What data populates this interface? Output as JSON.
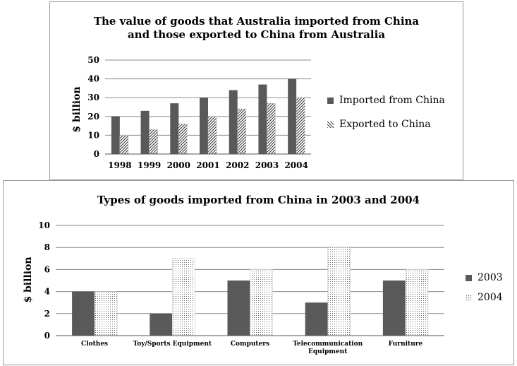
{
  "chart_data": [
    {
      "type": "bar",
      "title_line1": "The value of goods that Australia imported from China",
      "title_line2": "and those exported to China from Australia",
      "ylabel": "$ billion",
      "xlabel": "",
      "ylim": [
        0,
        50
      ],
      "yticks": [
        0,
        10,
        20,
        30,
        40,
        50
      ],
      "categories": [
        "1998",
        "1999",
        "2000",
        "2001",
        "2002",
        "2003",
        "2004"
      ],
      "series": [
        {
          "name": "Imported from China",
          "values": [
            20,
            23,
            27,
            30,
            34,
            37,
            40
          ],
          "color": "#595959",
          "pattern": "solid"
        },
        {
          "name": "Exported to China",
          "values": [
            10,
            13,
            16,
            20,
            24,
            27,
            30
          ],
          "color": "#444444",
          "pattern": "hatch"
        }
      ],
      "grid": true,
      "legend": "right"
    },
    {
      "type": "bar",
      "title": "Types of goods imported from China in 2003 and 2004",
      "ylabel": "$ billion",
      "xlabel": "",
      "ylim": [
        0,
        10
      ],
      "yticks": [
        0,
        2,
        4,
        6,
        8,
        10
      ],
      "categories": [
        "Clothes",
        "Toy/Sports Equipment",
        "Computers",
        "Telecommunication Equipment",
        "Furniture"
      ],
      "category_lines": [
        [
          "Clothes"
        ],
        [
          "Toy/Sports Equipment"
        ],
        [
          "Computers"
        ],
        [
          "Telecommunication",
          "Equipment"
        ],
        [
          "Furniture"
        ]
      ],
      "series": [
        {
          "name": "2003",
          "values": [
            4,
            2,
            5,
            3,
            5
          ],
          "color": "#595959",
          "pattern": "solid"
        },
        {
          "name": "2004",
          "values": [
            4,
            7,
            6,
            8,
            6
          ],
          "color": "#777777",
          "pattern": "dots"
        }
      ],
      "grid": true,
      "legend": "right"
    }
  ]
}
